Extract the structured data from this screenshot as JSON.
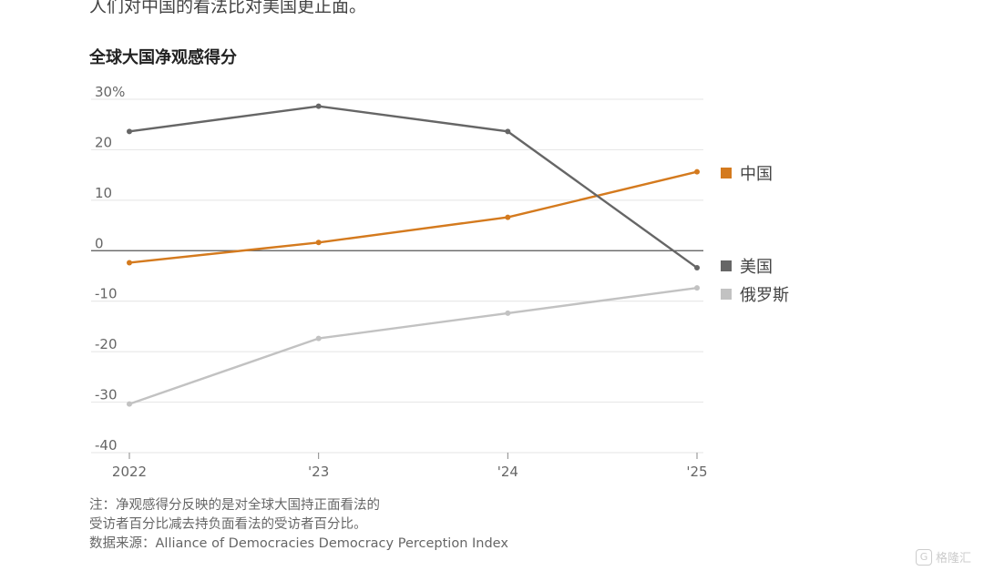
{
  "headline": "人们对中国的看法比对美国更正面。",
  "chart_data": {
    "type": "line",
    "title": "全球大国净观感得分",
    "categories": [
      "2022",
      "'23",
      "'24",
      "'25"
    ],
    "y_ticks": [
      "30%",
      "20",
      "10",
      "0",
      "-10",
      "-20",
      "-30",
      "-40"
    ],
    "ylim": [
      -40,
      30
    ],
    "grid": true,
    "legend_placement": "right",
    "series": [
      {
        "name": "中国",
        "color": "#d47a1e",
        "values": [
          -4,
          0,
          5,
          14
        ]
      },
      {
        "name": "美国",
        "color": "#666666",
        "values": [
          22,
          27,
          22,
          -5
        ]
      },
      {
        "name": "俄罗斯",
        "color": "#c2c2c2",
        "values": [
          -32,
          -19,
          -14,
          -9
        ]
      }
    ]
  },
  "notes": {
    "line1": "注：净观感得分反映的是对全球大国持正面看法的",
    "line2": "受访者百分比减去持负面看法的受访者百分比。",
    "source": "数据来源：Alliance of Democracies Democracy Perception Index"
  },
  "watermark": {
    "icon": "gelonghui-logo-icon",
    "text": "格隆汇"
  }
}
